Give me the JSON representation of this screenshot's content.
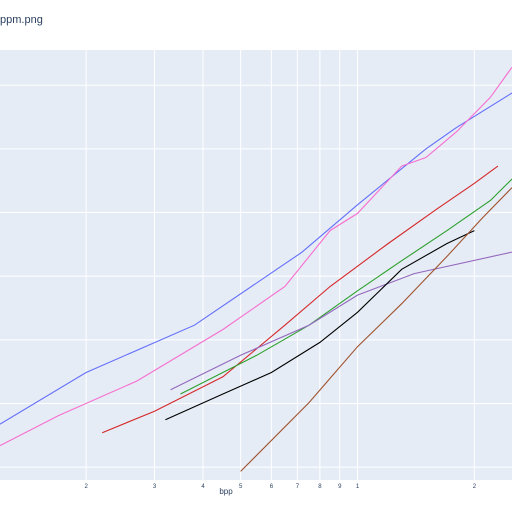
{
  "chart_data": {
    "type": "line",
    "title": "ppm.png",
    "xlabel": "bpp",
    "ylabel": "",
    "x_scale": "log",
    "xlim": [
      0.12,
      2.5
    ],
    "ylim": [
      0,
      1
    ],
    "x_tick_labels": [
      {
        "x": 0.2,
        "label": "2"
      },
      {
        "x": 0.3,
        "label": "3"
      },
      {
        "x": 0.4,
        "label": "4"
      },
      {
        "x": 0.5,
        "label": "5"
      },
      {
        "x": 0.6,
        "label": "6"
      },
      {
        "x": 0.7,
        "label": "7"
      },
      {
        "x": 0.8,
        "label": "8"
      },
      {
        "x": 0.9,
        "label": "9"
      },
      {
        "x": 1.0,
        "label": "1"
      },
      {
        "x": 2.0,
        "label": "2"
      }
    ],
    "y_grid": [
      0.03,
      0.178,
      0.326,
      0.474,
      0.622,
      0.77,
      0.918
    ],
    "grid": true,
    "background": "#E5ECF6",
    "series": [
      {
        "color": "#636EFA",
        "points": [
          [
            0.12,
            0.13
          ],
          [
            0.2,
            0.25
          ],
          [
            0.38,
            0.36
          ],
          [
            0.72,
            0.53
          ],
          [
            1.0,
            0.64
          ],
          [
            1.5,
            0.77
          ],
          [
            1.8,
            0.82
          ],
          [
            2.5,
            0.9
          ]
        ]
      },
      {
        "color": "#F76ECF",
        "points": [
          [
            0.12,
            0.08
          ],
          [
            0.17,
            0.15
          ],
          [
            0.27,
            0.23
          ],
          [
            0.45,
            0.35
          ],
          [
            0.65,
            0.45
          ],
          [
            0.85,
            0.58
          ],
          [
            1.0,
            0.62
          ],
          [
            1.3,
            0.73
          ],
          [
            1.5,
            0.75
          ],
          [
            1.8,
            0.81
          ],
          [
            2.2,
            0.89
          ],
          [
            2.5,
            0.96
          ]
        ]
      },
      {
        "color": "#D62728",
        "points": [
          [
            0.22,
            0.11
          ],
          [
            0.3,
            0.16
          ],
          [
            0.45,
            0.24
          ],
          [
            0.65,
            0.36
          ],
          [
            0.85,
            0.45
          ],
          [
            1.2,
            0.55
          ],
          [
            1.6,
            0.63
          ],
          [
            2.0,
            0.69
          ],
          [
            2.3,
            0.73
          ]
        ]
      },
      {
        "color": "#2CA02C",
        "points": [
          [
            0.35,
            0.2
          ],
          [
            0.55,
            0.29
          ],
          [
            0.75,
            0.36
          ],
          [
            1.0,
            0.44
          ],
          [
            1.3,
            0.51
          ],
          [
            1.7,
            0.58
          ],
          [
            2.2,
            0.65
          ],
          [
            2.5,
            0.7
          ]
        ]
      },
      {
        "color": "#9467BD",
        "points": [
          [
            0.33,
            0.21
          ],
          [
            0.5,
            0.29
          ],
          [
            0.75,
            0.36
          ],
          [
            1.0,
            0.43
          ],
          [
            1.4,
            0.48
          ],
          [
            2.5,
            0.53
          ]
        ]
      },
      {
        "color": "#000000",
        "points": [
          [
            0.32,
            0.14
          ],
          [
            0.45,
            0.2
          ],
          [
            0.6,
            0.25
          ],
          [
            0.8,
            0.32
          ],
          [
            1.0,
            0.39
          ],
          [
            1.3,
            0.49
          ],
          [
            1.7,
            0.55
          ],
          [
            2.0,
            0.58
          ]
        ]
      },
      {
        "color": "#A0522D",
        "points": [
          [
            0.5,
            0.02
          ],
          [
            0.75,
            0.18
          ],
          [
            1.0,
            0.31
          ],
          [
            1.3,
            0.41
          ],
          [
            1.7,
            0.52
          ],
          [
            2.1,
            0.61
          ],
          [
            2.5,
            0.68
          ]
        ]
      }
    ]
  }
}
